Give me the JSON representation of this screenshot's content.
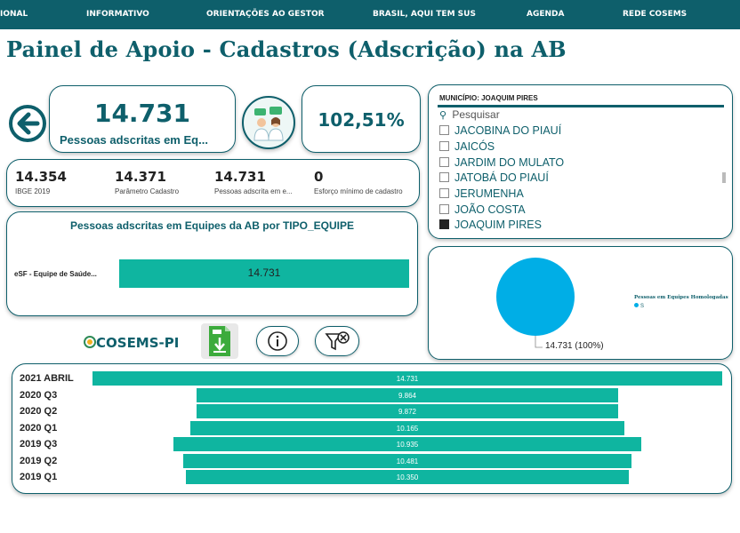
{
  "nav": {
    "items": [
      "IONAL",
      "INFORMATIVO",
      "ORIENTAÇÕES AO GESTOR",
      "BRASIL, AQUI TEM SUS",
      "AGENDA",
      "REDE COSEMS"
    ]
  },
  "page_title": "Painel de Apoio - Cadastros (Adscrição) na AB",
  "summary": {
    "adscritas_value": "14.731",
    "adscritas_label": "Pessoas adscritas em Eq...",
    "percent_value": "102,51%"
  },
  "kpis": [
    {
      "value": "14.354",
      "label": "IBGE 2019"
    },
    {
      "value": "14.371",
      "label": "Parâmetro Cadastro"
    },
    {
      "value": "14.731",
      "label": "Pessoas adscrita em e..."
    },
    {
      "value": "0",
      "label": "Esforço mínimo de cadastro"
    }
  ],
  "tipo_equipe_chart": {
    "title": "Pessoas adscritas em Equipes da AB por TIPO_EQUIPE",
    "category": "eSF - Equipe de Saúde...",
    "value_label": "14.731"
  },
  "slicer": {
    "header": "MUNICÍPIO: JOAQUIM PIRES",
    "search_placeholder": "Pesquisar",
    "items": [
      {
        "label": "JACOBINA DO PIAUÍ",
        "selected": false
      },
      {
        "label": "JAICÓS",
        "selected": false
      },
      {
        "label": "JARDIM DO MULATO",
        "selected": false
      },
      {
        "label": "JATOBÁ DO PIAUÍ",
        "selected": false
      },
      {
        "label": "JERUMENHA",
        "selected": false
      },
      {
        "label": "JOÃO COSTA",
        "selected": false
      },
      {
        "label": "JOAQUIM PIRES",
        "selected": true
      }
    ]
  },
  "pie": {
    "legend_title": "Pessoas em Equipes Homologadas",
    "legend_item": "S",
    "data_label": "14.731 (100%)"
  },
  "logo": {
    "text": "COSEMS-PI"
  },
  "colors": {
    "primary": "#0e5f6b",
    "bar": "#0fb5a0",
    "pie": "#00aee6"
  },
  "chart_data": [
    {
      "type": "bar",
      "title": "Pessoas adscritas em Equipes da AB por TIPO_EQUIPE",
      "categories": [
        "eSF - Equipe de Saúde..."
      ],
      "values": [
        14731
      ]
    },
    {
      "type": "pie",
      "legend_title": "Pessoas em Equipes Homologadas",
      "categories": [
        "S"
      ],
      "values": [
        14731
      ],
      "data_labels": [
        "14.731 (100%)"
      ]
    },
    {
      "type": "bar",
      "orientation": "horizontal",
      "categories": [
        "2021 ABRIL",
        "2020 Q3",
        "2020 Q2",
        "2020 Q1",
        "2019 Q3",
        "2019 Q2",
        "2019 Q1"
      ],
      "values": [
        14731,
        9864,
        9872,
        10165,
        10935,
        10481,
        10350
      ],
      "value_labels": [
        "14.731",
        "9.864",
        "9.872",
        "10.165",
        "10.935",
        "10.481",
        "10.350"
      ]
    }
  ]
}
